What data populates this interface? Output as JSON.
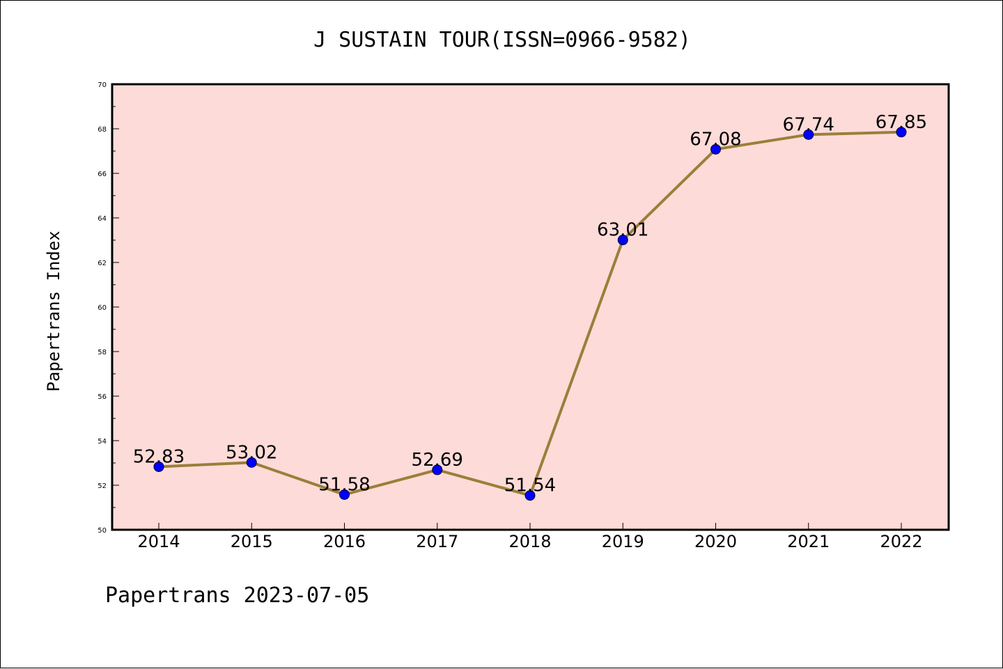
{
  "colors": {
    "plot_background": "#fddbd8",
    "line": "#9a7f3a",
    "marker": "#0000ff",
    "axis": "#000000"
  },
  "footer": {
    "text": "Papertrans 2023-07-05"
  },
  "chart_data": {
    "type": "line",
    "title": "J SUSTAIN TOUR(ISSN=0966-9582)",
    "xlabel": "",
    "ylabel": "Papertrans Index",
    "categories": [
      "2014",
      "2015",
      "2016",
      "2017",
      "2018",
      "2019",
      "2020",
      "2021",
      "2022"
    ],
    "series": [
      {
        "name": "Papertrans Index",
        "values": [
          52.83,
          53.02,
          51.58,
          52.69,
          51.54,
          63.01,
          67.08,
          67.74,
          67.85
        ],
        "labels": [
          "52.83",
          "53.02",
          "51.58",
          "52.69",
          "51.54",
          "63.01",
          "67.08",
          "67.74",
          "67.85"
        ]
      }
    ],
    "ylim": [
      50,
      70
    ],
    "yticks": [
      "50",
      "52",
      "54",
      "56",
      "58",
      "60",
      "62",
      "64",
      "66",
      "68",
      "70"
    ],
    "grid": false,
    "legend": "none"
  }
}
